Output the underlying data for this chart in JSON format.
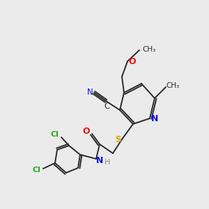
{
  "bg_color": "#ebebeb",
  "bond_color": "#2a2a2a",
  "colors": {
    "N": "#1010ee",
    "O": "#ee1010",
    "S": "#ccaa00",
    "Cl": "#22aa22",
    "C": "#2a2a2a",
    "H": "#888888"
  },
  "figsize": [
    3.0,
    3.0
  ],
  "dpi": 100
}
